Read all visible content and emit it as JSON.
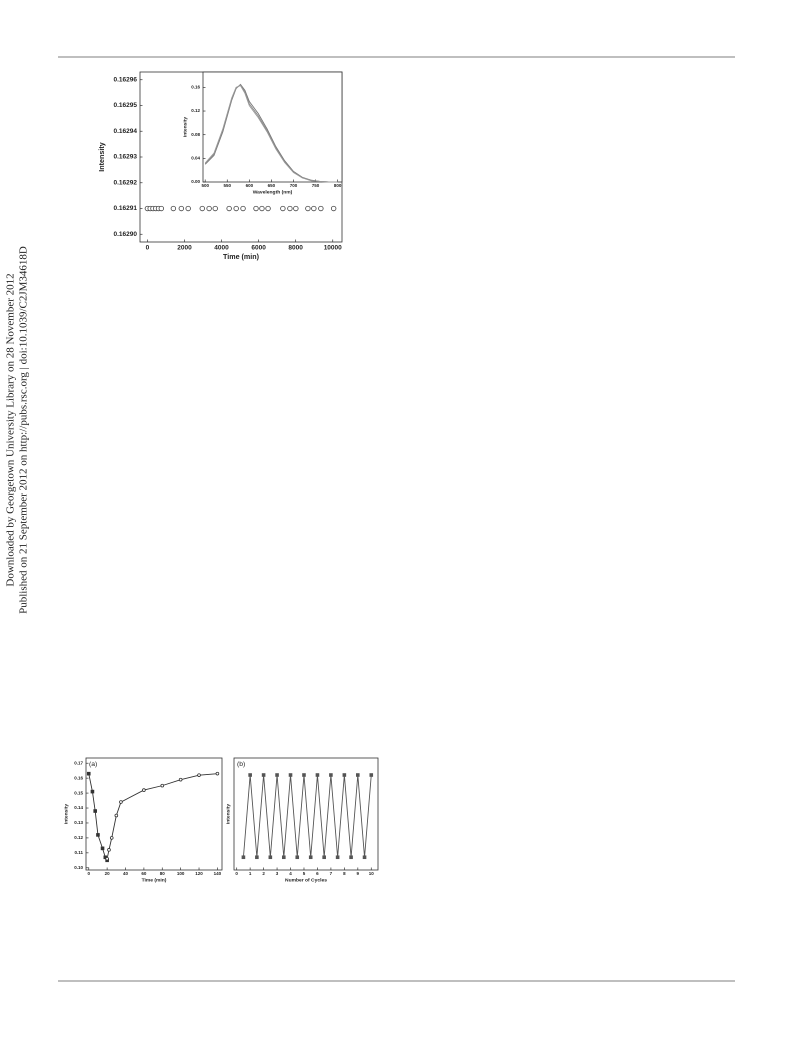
{
  "side_text": [
    "Downloaded by Georgetown University Library on 28 November 2012",
    "Published on 21 September 2012 on http://pubs.rsc.org | doi:10.1039/C2JM34618D"
  ],
  "side_text_color": "#1f3f99",
  "chart_data": [
    {
      "type": "scatter",
      "xlabel": "Time (min)",
      "ylabel": "Intensity",
      "xlim": [
        -400,
        10500
      ],
      "ylim": [
        0.162897,
        0.162963
      ],
      "xticks": [
        0,
        2000,
        4000,
        6000,
        8000,
        10000
      ],
      "yticks": [
        {
          "value": 0.1629,
          "label": "0.16290"
        },
        0.16291,
        0.16292,
        0.16293,
        0.16294,
        0.16295,
        0.16296
      ],
      "series": [
        {
          "color": "#444444",
          "marker": "circle-open",
          "x": [
            0,
            150,
            300,
            450,
            600,
            750,
            1400,
            1830,
            2200,
            2960,
            3330,
            3660,
            4410,
            4790,
            5160,
            5860,
            6180,
            6510,
            7310,
            7690,
            8010,
            8660,
            8980,
            9360,
            10050
          ],
          "values": [
            0.16291,
            0.16291,
            0.16291,
            0.16291,
            0.16291,
            0.16291,
            0.16291,
            0.16291,
            0.16291,
            0.16291,
            0.16291,
            0.16291,
            0.16291,
            0.16291,
            0.16291,
            0.16291,
            0.16291,
            0.16291,
            0.16291,
            0.16291,
            0.16291,
            0.16291,
            0.16291,
            0.16291,
            0.16291
          ]
        }
      ]
    },
    {
      "type": "line",
      "xlabel": "Wavelength (nm)",
      "ylabel": "Intensity",
      "xlim": [
        495,
        810
      ],
      "ylim": [
        0,
        0.186
      ],
      "xticks": [
        500,
        550,
        600,
        650,
        700,
        750,
        800
      ],
      "yticks": [
        {
          "value": 0,
          "label": "0.00"
        },
        0.04,
        0.08,
        0.12,
        0.16
      ],
      "x": [
        500,
        520,
        540,
        560,
        570,
        580,
        590,
        600,
        620,
        640,
        660,
        680,
        700,
        720,
        740,
        760,
        780,
        800
      ],
      "series": [
        {
          "color": "#777777",
          "values": [
            0.03,
            0.045,
            0.085,
            0.138,
            0.158,
            0.165,
            0.155,
            0.136,
            0.116,
            0.09,
            0.06,
            0.036,
            0.018,
            0.008,
            0.003,
            0.001,
            0,
            0
          ]
        },
        {
          "color": "#888888",
          "values": [
            0.031,
            0.047,
            0.088,
            0.14,
            0.159,
            0.164,
            0.152,
            0.132,
            0.112,
            0.087,
            0.058,
            0.034,
            0.017,
            0.007,
            0.003,
            0.001,
            0,
            0
          ]
        },
        {
          "color": "#999999",
          "values": [
            0.032,
            0.049,
            0.09,
            0.142,
            0.16,
            0.163,
            0.15,
            0.129,
            0.109,
            0.085,
            0.056,
            0.033,
            0.016,
            0.007,
            0.002,
            0.001,
            0,
            0
          ]
        }
      ]
    },
    {
      "type": "line",
      "panel_label": "(a)",
      "xlabel": "Time (min)",
      "ylabel": "Intensity",
      "xlim": [
        -3,
        145
      ],
      "ylim": [
        0.0985,
        0.1735
      ],
      "xticks": [
        0,
        20,
        40,
        60,
        80,
        100,
        120,
        140
      ],
      "yticks": [
        {
          "value": 0.1,
          "label": "0.10"
        },
        0.11,
        0.12,
        0.13,
        0.14,
        0.15,
        0.16,
        0.17
      ],
      "series": [
        {
          "color": "#333333",
          "marker": "square",
          "x": [
            0,
            4,
            7,
            10,
            15,
            18,
            20
          ],
          "values": [
            0.163,
            0.151,
            0.138,
            0.122,
            0.113,
            0.107,
            0.105
          ]
        },
        {
          "color": "#333333",
          "marker": "circle-open",
          "x": [
            20,
            22,
            25,
            30,
            35,
            60,
            80,
            100,
            120,
            140
          ],
          "values": [
            0.106,
            0.112,
            0.12,
            0.135,
            0.144,
            0.152,
            0.155,
            0.159,
            0.162,
            0.163
          ]
        }
      ]
    },
    {
      "type": "line",
      "panel_label": "(b)",
      "xlabel": "Number of Cycles",
      "ylabel": "Intensity",
      "xlim": [
        -0.2,
        10.5
      ],
      "ylim": [
        0.096,
        0.175
      ],
      "xticks": [
        0,
        1,
        2,
        3,
        4,
        5,
        6,
        7,
        8,
        9,
        10
      ],
      "series": [
        {
          "color": "#555555",
          "marker": "square",
          "x": [
            0.5,
            1,
            1.5,
            2,
            2.5,
            3,
            3.5,
            4,
            4.5,
            5,
            5.5,
            6,
            6.5,
            7,
            7.5,
            8,
            8.5,
            9,
            9.5,
            10
          ],
          "values": [
            0.105,
            0.163,
            0.105,
            0.163,
            0.105,
            0.163,
            0.105,
            0.163,
            0.105,
            0.163,
            0.105,
            0.163,
            0.105,
            0.163,
            0.105,
            0.163,
            0.105,
            0.163,
            0.105,
            0.163
          ]
        }
      ]
    }
  ]
}
